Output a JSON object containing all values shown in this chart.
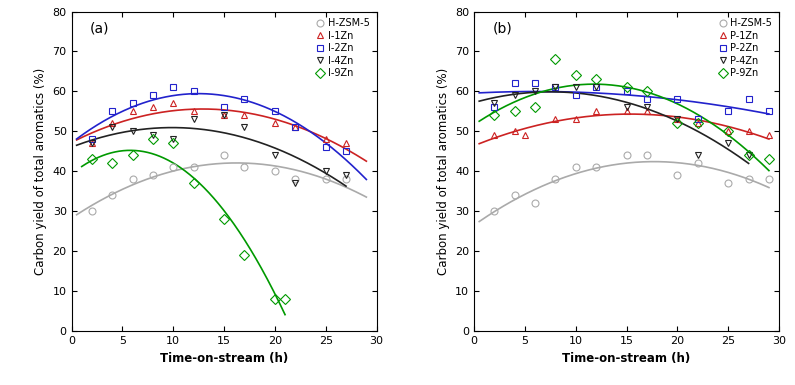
{
  "panel_a": {
    "label": "(a)",
    "series": [
      {
        "name": "H-ZSM-5",
        "color": "#aaaaaa",
        "marker": "o",
        "markersize": 5,
        "fillstyle": "none",
        "x": [
          2,
          4,
          6,
          8,
          10,
          12,
          15,
          17,
          20,
          22,
          25,
          27
        ],
        "y": [
          30,
          34,
          38,
          39,
          41,
          41,
          44,
          41,
          40,
          38,
          38,
          38
        ],
        "fit_xmin": 0.5,
        "fit_xmax": 29,
        "fit_degree": 2
      },
      {
        "name": "I-1Zn",
        "color": "#cc2222",
        "marker": "^",
        "markersize": 5,
        "fillstyle": "none",
        "x": [
          2,
          4,
          6,
          8,
          10,
          12,
          15,
          17,
          20,
          22,
          25,
          27
        ],
        "y": [
          47,
          52,
          55,
          56,
          57,
          55,
          54,
          54,
          52,
          51,
          48,
          47
        ],
        "fit_xmin": 0.5,
        "fit_xmax": 29,
        "fit_degree": 2
      },
      {
        "name": "I-2Zn",
        "color": "#2222cc",
        "marker": "s",
        "markersize": 5,
        "fillstyle": "none",
        "x": [
          2,
          4,
          6,
          8,
          10,
          12,
          15,
          17,
          20,
          22,
          25,
          27
        ],
        "y": [
          48,
          55,
          57,
          59,
          61,
          60,
          56,
          58,
          55,
          51,
          46,
          45
        ],
        "fit_xmin": 0.5,
        "fit_xmax": 29,
        "fit_degree": 2
      },
      {
        "name": "I-4Zn",
        "color": "#222222",
        "marker": "v",
        "markersize": 5,
        "fillstyle": "none",
        "x": [
          2,
          4,
          6,
          8,
          10,
          12,
          15,
          17,
          20,
          22,
          25,
          27
        ],
        "y": [
          47,
          51,
          50,
          49,
          48,
          53,
          54,
          51,
          44,
          37,
          40,
          39
        ],
        "fit_xmin": 0.5,
        "fit_xmax": 27,
        "fit_degree": 2
      },
      {
        "name": "I-9Zn",
        "color": "#009900",
        "marker": "D",
        "markersize": 5,
        "fillstyle": "none",
        "x": [
          2,
          4,
          6,
          8,
          10,
          12,
          15,
          17,
          20,
          21
        ],
        "y": [
          43,
          42,
          44,
          48,
          47,
          37,
          28,
          19,
          8,
          8
        ],
        "fit_xmin": 1.0,
        "fit_xmax": 21,
        "fit_degree": 2
      }
    ]
  },
  "panel_b": {
    "label": "(b)",
    "series": [
      {
        "name": "H-ZSM-5",
        "color": "#aaaaaa",
        "marker": "o",
        "markersize": 5,
        "fillstyle": "none",
        "x": [
          2,
          4,
          6,
          8,
          10,
          12,
          15,
          17,
          20,
          22,
          25,
          27,
          29
        ],
        "y": [
          30,
          34,
          32,
          38,
          41,
          41,
          44,
          44,
          39,
          42,
          37,
          38,
          38
        ],
        "fit_xmin": 0.5,
        "fit_xmax": 29,
        "fit_degree": 2
      },
      {
        "name": "P-1Zn",
        "color": "#cc2222",
        "marker": "^",
        "markersize": 5,
        "fillstyle": "none",
        "x": [
          2,
          4,
          5,
          8,
          10,
          12,
          15,
          17,
          20,
          22,
          25,
          27,
          29
        ],
        "y": [
          49,
          50,
          49,
          53,
          53,
          55,
          55,
          55,
          53,
          52,
          50,
          50,
          49
        ],
        "fit_xmin": 0.5,
        "fit_xmax": 29,
        "fit_degree": 2
      },
      {
        "name": "P-2Zn",
        "color": "#2222cc",
        "marker": "s",
        "markersize": 5,
        "fillstyle": "none",
        "x": [
          2,
          4,
          6,
          8,
          10,
          12,
          15,
          17,
          20,
          22,
          25,
          27,
          29
        ],
        "y": [
          56,
          62,
          62,
          61,
          59,
          61,
          60,
          58,
          58,
          53,
          55,
          58,
          55
        ],
        "fit_xmin": 0.5,
        "fit_xmax": 29,
        "fit_degree": 2
      },
      {
        "name": "P-4Zn",
        "color": "#222222",
        "marker": "v",
        "markersize": 5,
        "fillstyle": "none",
        "x": [
          2,
          4,
          6,
          8,
          10,
          12,
          15,
          17,
          20,
          22,
          25,
          27
        ],
        "y": [
          57,
          59,
          60,
          61,
          61,
          61,
          56,
          56,
          53,
          44,
          47,
          44
        ],
        "fit_xmin": 0.5,
        "fit_xmax": 27,
        "fit_degree": 2
      },
      {
        "name": "P-9Zn",
        "color": "#009900",
        "marker": "D",
        "markersize": 5,
        "fillstyle": "none",
        "x": [
          2,
          4,
          6,
          8,
          10,
          12,
          15,
          17,
          20,
          22,
          25,
          27,
          29
        ],
        "y": [
          54,
          55,
          56,
          68,
          64,
          63,
          61,
          60,
          52,
          52,
          50,
          44,
          43
        ],
        "fit_xmin": 0.5,
        "fit_xmax": 29,
        "fit_degree": 2
      }
    ]
  },
  "xlabel": "Time-on-stream (h)",
  "ylabel": "Carbon yield of total aromatics (%)",
  "xlim": [
    0,
    30
  ],
  "ylim": [
    0,
    80
  ],
  "xticks": [
    0,
    5,
    10,
    15,
    20,
    25,
    30
  ],
  "yticks": [
    0,
    10,
    20,
    30,
    40,
    50,
    60,
    70,
    80
  ],
  "legend_a": [
    "H-ZSM-5",
    "I-1Zn",
    "I-2Zn",
    "I-4Zn",
    "I-9Zn"
  ],
  "legend_b": [
    "H-ZSM-5",
    "P-1Zn",
    "P-2Zn",
    "P-4Zn",
    "P-9Zn"
  ],
  "markers_a": [
    "o",
    "^",
    "s",
    "v",
    "D"
  ],
  "colors": [
    "#aaaaaa",
    "#cc2222",
    "#2222cc",
    "#222222",
    "#009900"
  ]
}
